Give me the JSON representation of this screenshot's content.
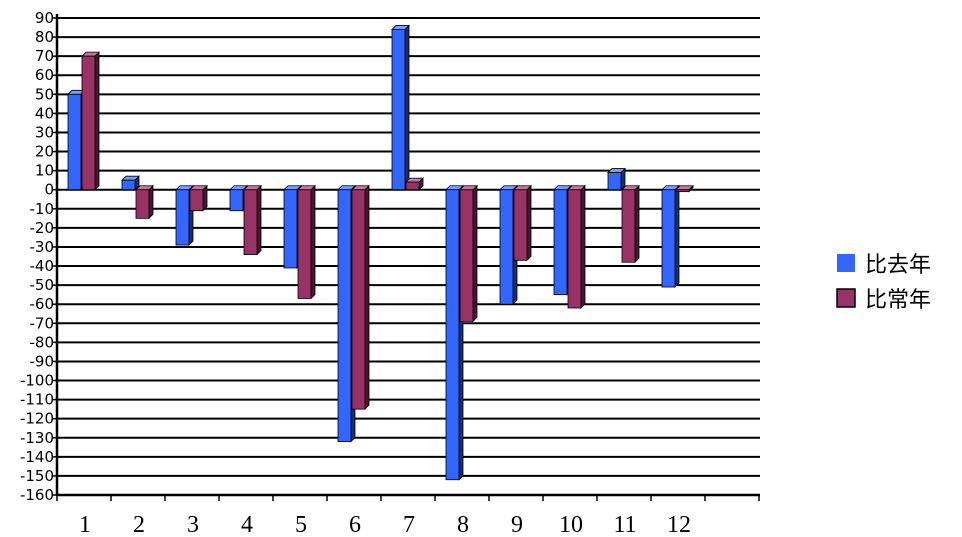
{
  "chart_data": {
    "type": "bar",
    "categories": [
      "1",
      "2",
      "3",
      "4",
      "5",
      "6",
      "7",
      "8",
      "9",
      "10",
      "11",
      "12"
    ],
    "series": [
      {
        "name": "比去年",
        "color": "#3366ff",
        "values": [
          50,
          5,
          -29,
          -11,
          -41,
          -132,
          84,
          -152,
          -60,
          -55,
          9,
          -51
        ]
      },
      {
        "name": "比常年",
        "color": "#993366",
        "values": [
          70,
          -15,
          -11,
          -34,
          -57,
          -115,
          4,
          -69,
          -37,
          -62,
          -38,
          -1
        ]
      }
    ],
    "yticks": [
      "90",
      "80",
      "70",
      "60",
      "50",
      "40",
      "30",
      "20",
      "10",
      "0",
      "-10",
      "-20",
      "-30",
      "-40",
      "-50",
      "-60",
      "-70",
      "-80",
      "-90",
      "-100",
      "-110",
      "-120",
      "-130",
      "-140",
      "-150",
      "-160"
    ],
    "ylim": [
      -160,
      90
    ],
    "grid": true,
    "legend_position": "right",
    "title": "",
    "xlabel": "",
    "ylabel": ""
  }
}
